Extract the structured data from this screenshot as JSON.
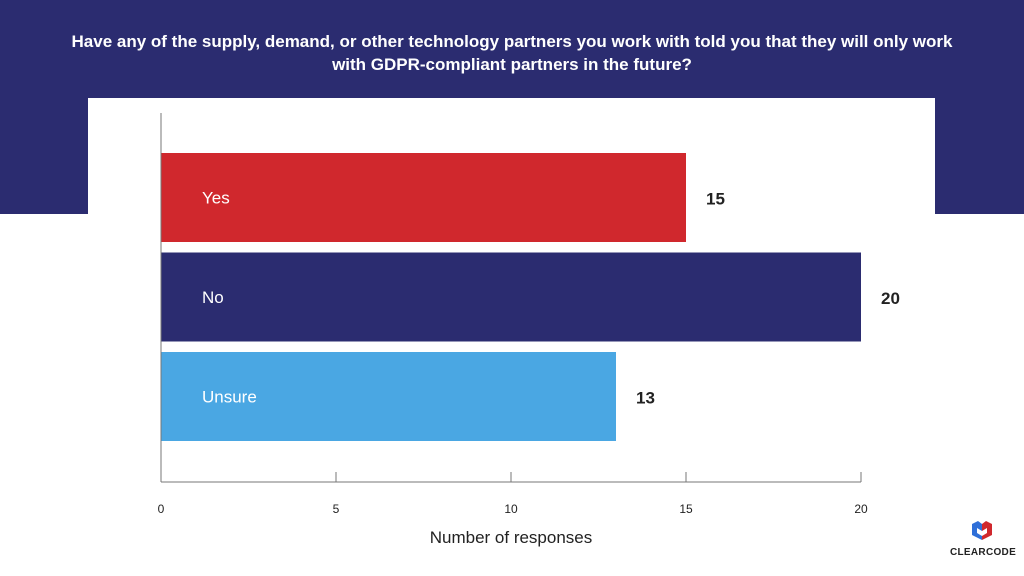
{
  "title": "Have any of the supply, demand, or other technology partners you work with told you that they will only work with GDPR-compliant partners in the future?",
  "logo": "CLEARCODE",
  "colors": {
    "header": "#2b2c70",
    "yes": "#d0282d",
    "no": "#2b2c70",
    "unsure": "#4aa7e3"
  },
  "chart_data": {
    "type": "bar",
    "orientation": "horizontal",
    "categories": [
      "Yes",
      "No",
      "Unsure"
    ],
    "values": [
      15,
      20,
      13
    ],
    "xlabel": "Number of responses",
    "xlim": [
      0,
      20
    ],
    "xticks": [
      0,
      5,
      10,
      15,
      20
    ],
    "grid": false,
    "data_labels": true
  }
}
